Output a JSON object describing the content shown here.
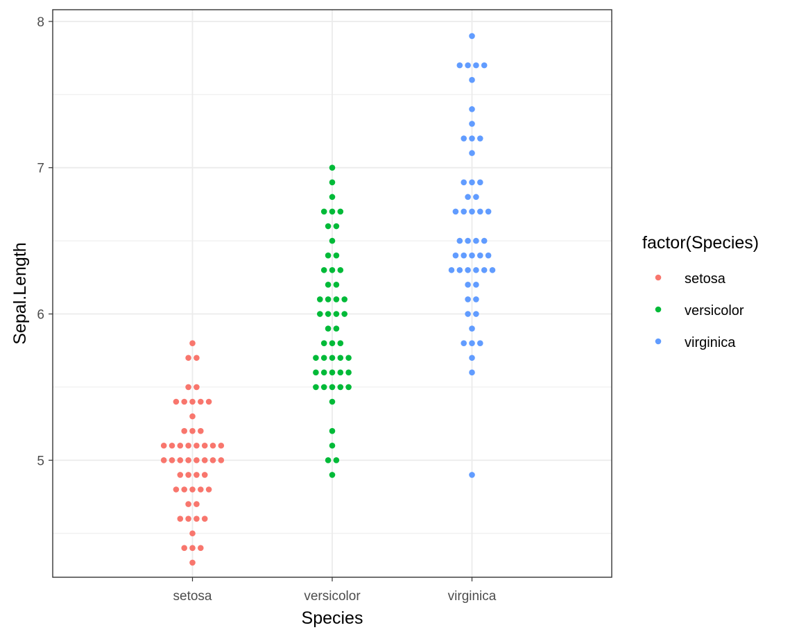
{
  "chart_data": {
    "type": "scatter",
    "subtype": "beeswarm",
    "xlabel": "Species",
    "ylabel": "Sepal.Length",
    "categories": [
      "setosa",
      "versicolor",
      "virginica"
    ],
    "ylim": [
      4.2,
      8.08
    ],
    "yticks": [
      5,
      6,
      7,
      8
    ],
    "grid": true,
    "legend": {
      "title": "factor(Species)",
      "placement": "right"
    },
    "series": [
      {
        "name": "setosa",
        "color": "#F8766D",
        "values": [
          5.1,
          4.9,
          4.7,
          4.6,
          5.0,
          5.4,
          4.6,
          5.0,
          4.4,
          4.9,
          5.4,
          4.8,
          4.8,
          4.3,
          5.8,
          5.7,
          5.4,
          5.1,
          5.7,
          5.1,
          5.4,
          5.1,
          4.6,
          5.1,
          4.8,
          5.0,
          5.0,
          5.2,
          5.2,
          4.7,
          4.8,
          5.4,
          5.2,
          5.5,
          4.9,
          5.0,
          5.5,
          4.9,
          4.4,
          5.1,
          5.0,
          4.5,
          4.4,
          5.0,
          5.1,
          4.8,
          5.1,
          4.6,
          5.3,
          5.0
        ]
      },
      {
        "name": "versicolor",
        "color": "#00BA38",
        "values": [
          7.0,
          6.4,
          6.9,
          5.5,
          6.5,
          5.7,
          6.3,
          4.9,
          6.6,
          5.2,
          5.0,
          5.9,
          6.0,
          6.1,
          5.6,
          6.7,
          5.6,
          5.8,
          6.2,
          5.6,
          5.9,
          6.1,
          6.3,
          6.1,
          6.4,
          6.6,
          6.8,
          6.7,
          6.0,
          5.7,
          5.5,
          5.5,
          5.8,
          6.0,
          5.4,
          6.0,
          6.7,
          6.3,
          5.6,
          5.5,
          5.5,
          6.1,
          5.8,
          5.0,
          5.6,
          5.7,
          5.7,
          6.2,
          5.1,
          5.7
        ]
      },
      {
        "name": "virginica",
        "color": "#619CFF",
        "values": [
          6.3,
          5.8,
          7.1,
          6.3,
          6.5,
          7.6,
          4.9,
          7.3,
          6.7,
          7.2,
          6.5,
          6.4,
          6.8,
          5.7,
          5.8,
          6.4,
          6.5,
          7.7,
          7.7,
          6.0,
          6.9,
          5.6,
          7.7,
          6.3,
          6.7,
          7.2,
          6.2,
          6.1,
          6.4,
          7.2,
          7.4,
          7.9,
          6.4,
          6.3,
          6.1,
          7.7,
          6.3,
          6.4,
          6.0,
          6.9,
          6.7,
          6.9,
          5.8,
          6.8,
          6.7,
          6.7,
          6.3,
          6.5,
          6.2,
          5.9
        ]
      }
    ]
  }
}
